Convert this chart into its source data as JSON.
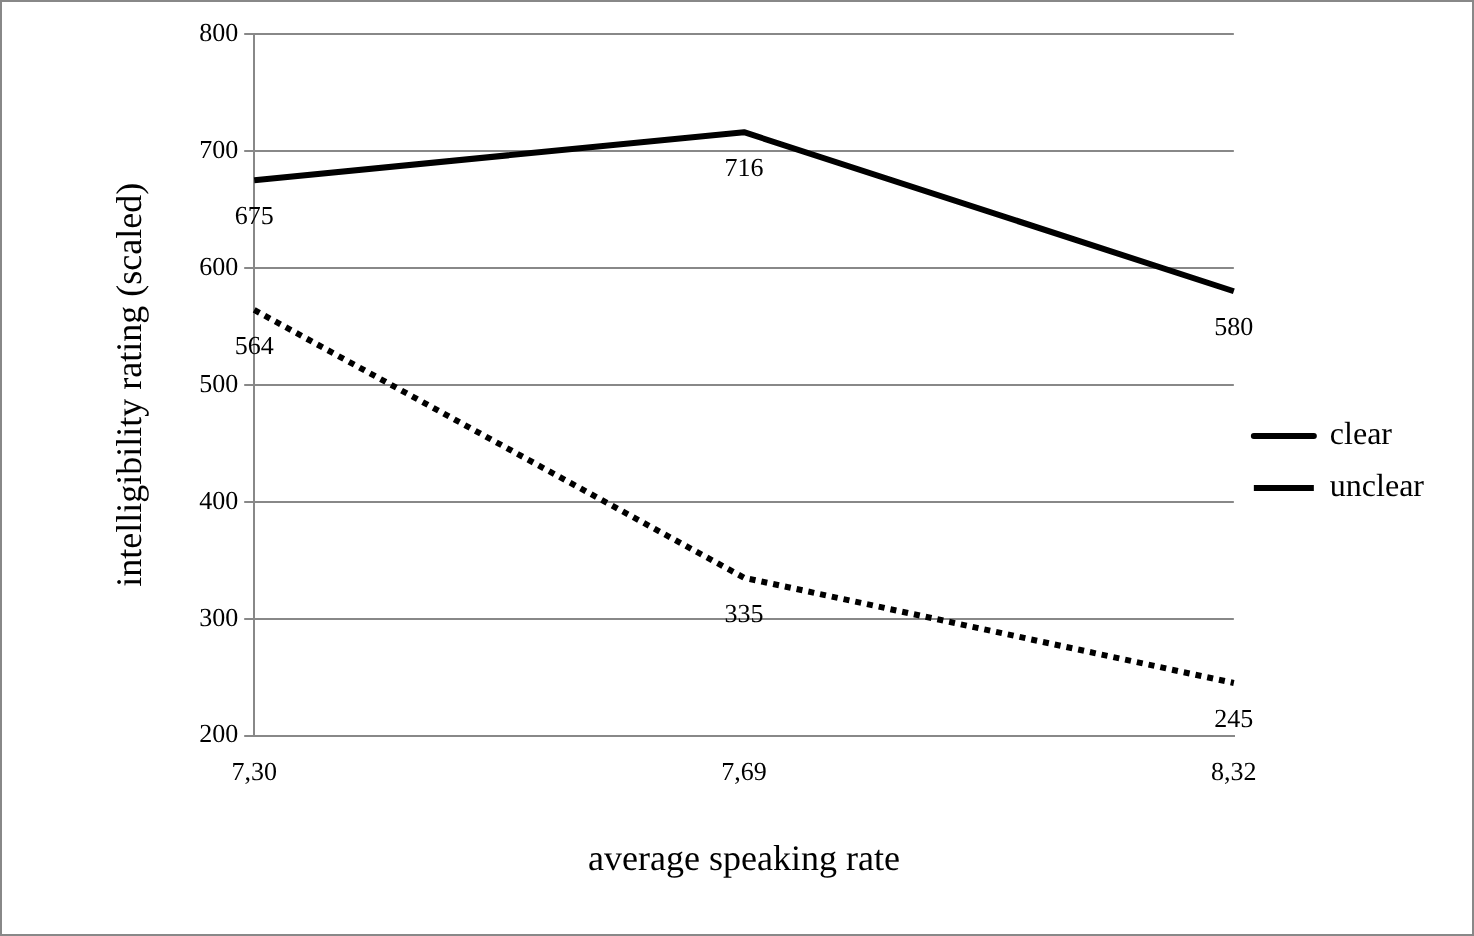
{
  "chart_data": {
    "type": "line",
    "xlabel": "average speaking rate",
    "ylabel": "intelligibility rating (scaled)",
    "categories": [
      "7,30",
      "7,69",
      "8,32"
    ],
    "series": [
      {
        "name": "clear",
        "color": "#000000",
        "values": [
          675,
          716,
          580
        ],
        "line_style": "solid"
      },
      {
        "name": "unclear",
        "color": "#000000",
        "values": [
          564,
          335,
          245
        ],
        "line_style": "dotted"
      }
    ],
    "ylim": [
      200,
      800
    ],
    "yticks": [
      200,
      300,
      400,
      500,
      600,
      700,
      800
    ],
    "grid": "y",
    "legend": "right",
    "marker": "none",
    "data_labels": true
  }
}
